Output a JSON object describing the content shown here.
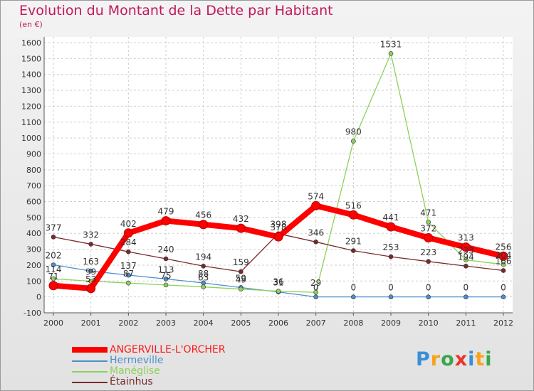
{
  "title": "Evolution du Montant de la Dette par Habitant",
  "subtitle": "(en €)",
  "logo": "Proxiti",
  "chart_data": {
    "type": "line",
    "title": "Evolution du Montant de la Dette par Habitant",
    "ylabel": "(en €)",
    "x": [
      2000,
      2001,
      2002,
      2003,
      2004,
      2005,
      2006,
      2007,
      2008,
      2009,
      2010,
      2011,
      2012
    ],
    "ylim": [
      -100,
      1600
    ],
    "yticks": [
      -100,
      0,
      100,
      200,
      300,
      400,
      500,
      600,
      700,
      800,
      900,
      1000,
      1100,
      1200,
      1300,
      1400,
      1500,
      1600
    ],
    "grid": true,
    "legend_position": "bottom-left",
    "series": [
      {
        "name": "ANGERVILLE-L'ORCHER",
        "color": "#ff0000",
        "values": [
          71,
          53,
          402,
          479,
          456,
          432,
          378,
          574,
          516,
          441,
          372,
          313,
          256
        ],
        "labels": [
          "71",
          "53",
          "402",
          "479",
          "456",
          "432",
          "378",
          "574",
          "516",
          "441",
          "372",
          "313",
          "256"
        ]
      },
      {
        "name": "Hermeville",
        "color": "#4d8fcb",
        "values": [
          202,
          163,
          137,
          113,
          88,
          59,
          31,
          0,
          0,
          0,
          0,
          0,
          0
        ],
        "labels": [
          "202",
          "163",
          "137",
          "113",
          "88",
          "59",
          "31",
          "0",
          "0",
          "0",
          "0",
          "0",
          "0"
        ]
      },
      {
        "name": "Manéglise",
        "color": "#8ed15a",
        "values": [
          114,
          99,
          87,
          75,
          63,
          49,
          36,
          29,
          980,
          1531,
          471,
          233,
          204
        ],
        "labels": [
          "114",
          "99",
          "87",
          "75",
          "63",
          "49",
          "36",
          "29",
          "980",
          "1531",
          "471",
          "233",
          "204"
        ]
      },
      {
        "name": "Étainhus",
        "color": "#7a2a2a",
        "values": [
          377,
          332,
          284,
          240,
          194,
          159,
          398,
          346,
          291,
          253,
          223,
          194,
          166
        ],
        "labels": [
          "377",
          "332",
          "284",
          "240",
          "194",
          "159",
          "398",
          "346",
          "291",
          "253",
          "223",
          "194",
          "166"
        ]
      }
    ]
  }
}
